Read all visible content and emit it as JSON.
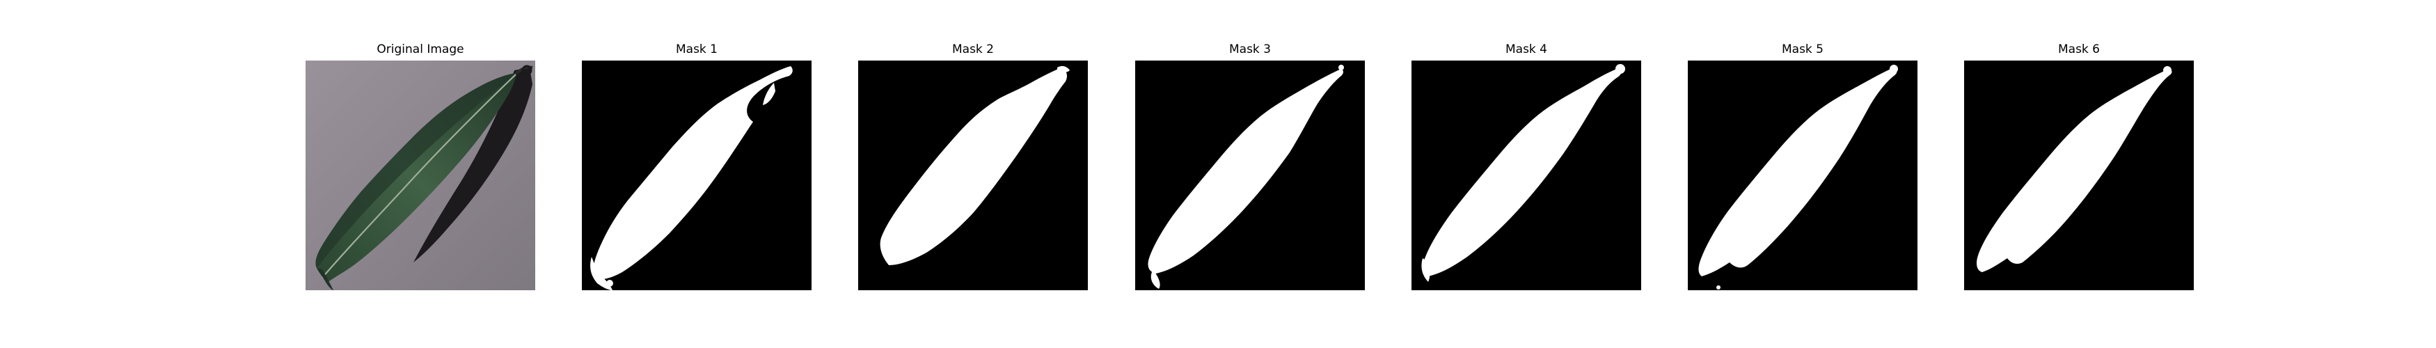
{
  "figure": {
    "panels": [
      {
        "title": "Original Image",
        "kind": "photo",
        "icon": "leaf-photo"
      },
      {
        "title": "Mask 1",
        "kind": "mask",
        "icon": "leaf-mask"
      },
      {
        "title": "Mask 2",
        "kind": "mask",
        "icon": "leaf-mask"
      },
      {
        "title": "Mask 3",
        "kind": "mask",
        "icon": "leaf-mask"
      },
      {
        "title": "Mask 4",
        "kind": "mask",
        "icon": "leaf-mask"
      },
      {
        "title": "Mask 5",
        "kind": "mask",
        "icon": "leaf-mask"
      },
      {
        "title": "Mask 6",
        "kind": "mask",
        "icon": "leaf-mask"
      }
    ],
    "colors": {
      "photo_background": "#8b8389",
      "leaf_dark": "#24392a",
      "leaf_mid": "#3e5c43",
      "leaf_vein": "#9fae98",
      "shadow": "#1c1a1d",
      "mask_background": "#000000",
      "mask_foreground": "#ffffff"
    }
  }
}
